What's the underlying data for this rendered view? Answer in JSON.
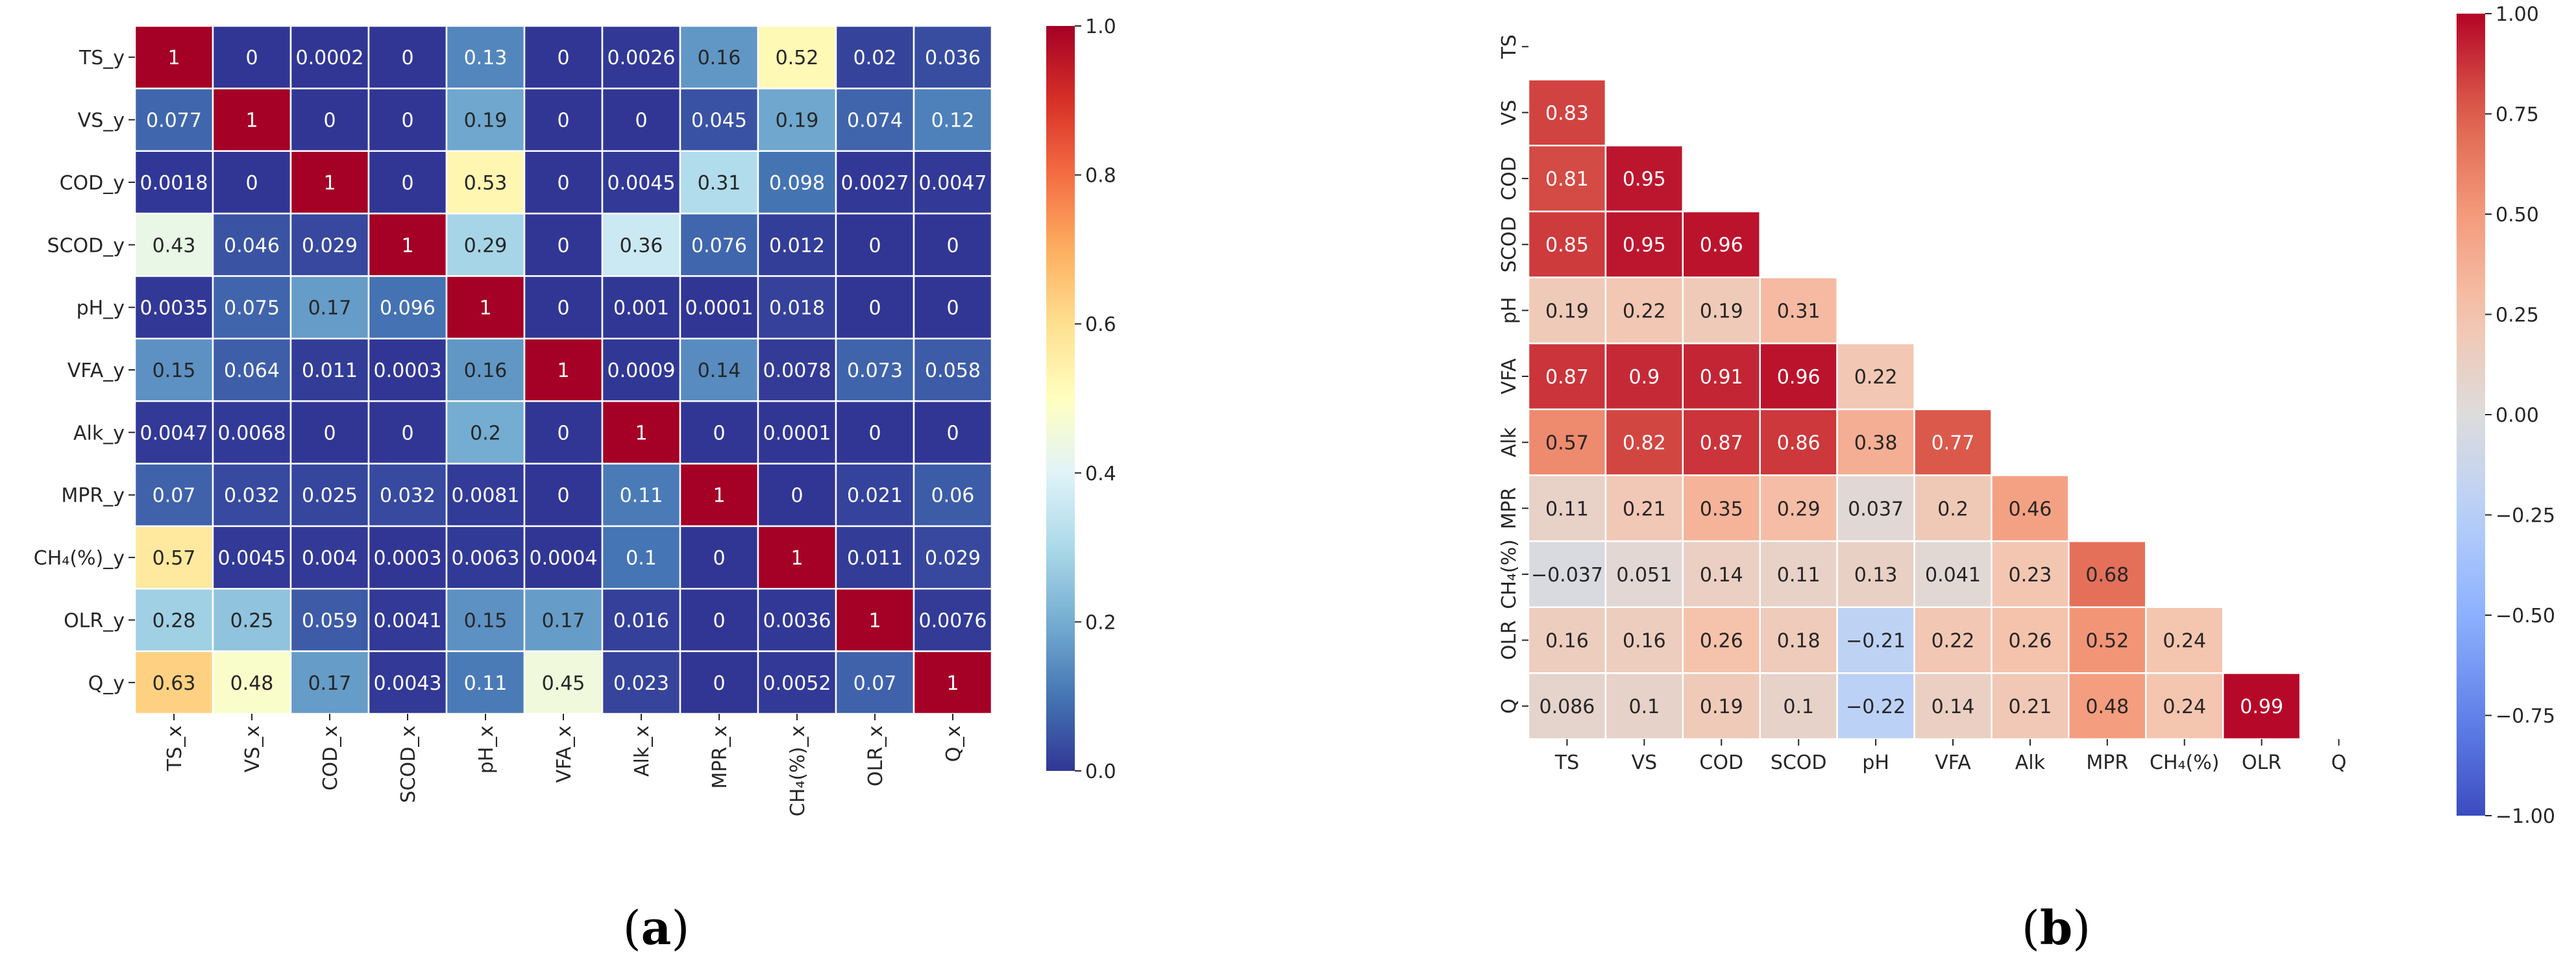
{
  "chart_data": [
    {
      "type": "heatmap",
      "panel_label": "a",
      "colormap": "RdYlBu_r",
      "vmin": 0,
      "vmax": 1,
      "colorbar_ticks": [
        "0.0",
        "0.2",
        "0.4",
        "0.6",
        "0.8",
        "1.0"
      ],
      "colorbar_tick_values": [
        0,
        0.2,
        0.4,
        0.6,
        0.8,
        1.0
      ],
      "row_labels": [
        "TS_y",
        "VS_y",
        "COD_y",
        "SCOD_y",
        "pH_y",
        "VFA_y",
        "Alk_y",
        "MPR_y",
        "CH₄(%)_y",
        "OLR_y",
        "Q_y"
      ],
      "col_labels": [
        "TS_x",
        "VS_x",
        "COD_x",
        "SCOD_x",
        "pH_x",
        "VFA_x",
        "Alk_x",
        "MPR_x",
        "CH₄(%)_x",
        "OLR_x",
        "Q_x"
      ],
      "values": [
        [
          1,
          0,
          0.0002,
          0,
          0.13,
          0,
          0.0026,
          0.16,
          0.52,
          0.02,
          0.036
        ],
        [
          0.077,
          1,
          0,
          0,
          0.19,
          0,
          0,
          0.045,
          0.19,
          0.074,
          0.12
        ],
        [
          0.0018,
          0,
          1,
          0,
          0.53,
          0,
          0.0045,
          0.31,
          0.098,
          0.0027,
          0.0047
        ],
        [
          0.43,
          0.046,
          0.029,
          1,
          0.29,
          0,
          0.36,
          0.076,
          0.012,
          0,
          0
        ],
        [
          0.0035,
          0.075,
          0.17,
          0.096,
          1,
          0,
          0.001,
          0.0001,
          0.018,
          0,
          0
        ],
        [
          0.15,
          0.064,
          0.011,
          0.0003,
          0.16,
          1,
          0.0009,
          0.14,
          0.0078,
          0.073,
          0.058
        ],
        [
          0.0047,
          0.0068,
          0,
          0,
          0.2,
          0,
          1,
          0,
          0.0001,
          0,
          0
        ],
        [
          0.07,
          0.032,
          0.025,
          0.032,
          0.0081,
          0,
          0.11,
          1,
          0,
          0.021,
          0.06
        ],
        [
          0.57,
          0.0045,
          0.004,
          0.0003,
          0.0063,
          0.0004,
          0.1,
          0,
          1,
          0.011,
          0.029
        ],
        [
          0.28,
          0.25,
          0.059,
          0.0041,
          0.15,
          0.17,
          0.016,
          0,
          0.0036,
          1,
          0.0076
        ],
        [
          0.63,
          0.48,
          0.17,
          0.0043,
          0.11,
          0.45,
          0.023,
          0,
          0.0052,
          0.07,
          1
        ]
      ],
      "value_labels": [
        [
          "1",
          "0",
          "0.0002",
          "0",
          "0.13",
          "0",
          "0.0026",
          "0.16",
          "0.52",
          "0.02",
          "0.036"
        ],
        [
          "0.077",
          "1",
          "0",
          "0",
          "0.19",
          "0",
          "0",
          "0.045",
          "0.19",
          "0.074",
          "0.12"
        ],
        [
          "0.0018",
          "0",
          "1",
          "0",
          "0.53",
          "0",
          "0.0045",
          "0.31",
          "0.098",
          "0.0027",
          "0.0047"
        ],
        [
          "0.43",
          "0.046",
          "0.029",
          "1",
          "0.29",
          "0",
          "0.36",
          "0.076",
          "0.012",
          "0",
          "0"
        ],
        [
          "0.0035",
          "0.075",
          "0.17",
          "0.096",
          "1",
          "0",
          "0.001",
          "0.0001",
          "0.018",
          "0",
          "0"
        ],
        [
          "0.15",
          "0.064",
          "0.011",
          "0.0003",
          "0.16",
          "1",
          "0.0009",
          "0.14",
          "0.0078",
          "0.073",
          "0.058"
        ],
        [
          "0.0047",
          "0.0068",
          "0",
          "0",
          "0.2",
          "0",
          "1",
          "0",
          "0.0001",
          "0",
          "0"
        ],
        [
          "0.07",
          "0.032",
          "0.025",
          "0.032",
          "0.0081",
          "0",
          "0.11",
          "1",
          "0",
          "0.021",
          "0.06"
        ],
        [
          "0.57",
          "0.0045",
          "0.004",
          "0.0003",
          "0.0063",
          "0.0004",
          "0.1",
          "0",
          "1",
          "0.011",
          "0.029"
        ],
        [
          "0.28",
          "0.25",
          "0.059",
          "0.0041",
          "0.15",
          "0.17",
          "0.016",
          "0",
          "0.0036",
          "1",
          "0.0076"
        ],
        [
          "0.63",
          "0.48",
          "0.17",
          "0.0043",
          "0.11",
          "0.45",
          "0.023",
          "0",
          "0.0052",
          "0.07",
          "1"
        ]
      ],
      "grid_lines": true
    },
    {
      "type": "heatmap",
      "panel_label": "b",
      "colormap": "coolwarm",
      "mask": "upper-triangle-including-diagonal",
      "vmin": -1,
      "vmax": 1,
      "colorbar_ticks": [
        "−1.00",
        "−0.75",
        "−0.50",
        "−0.25",
        "0.00",
        "0.25",
        "0.50",
        "0.75",
        "1.00"
      ],
      "colorbar_tick_values": [
        -1,
        -0.75,
        -0.5,
        -0.25,
        0,
        0.25,
        0.5,
        0.75,
        1
      ],
      "row_labels": [
        "TS",
        "VS",
        "COD",
        "SCOD",
        "pH",
        "VFA",
        "Alk",
        "MPR",
        "CH₄(%)",
        "OLR",
        "Q"
      ],
      "col_labels": [
        "TS",
        "VS",
        "COD",
        "SCOD",
        "pH",
        "VFA",
        "Alk",
        "MPR",
        "CH₄(%)",
        "OLR",
        "Q"
      ],
      "values": [
        [],
        [
          0.83
        ],
        [
          0.81,
          0.95
        ],
        [
          0.85,
          0.95,
          0.96
        ],
        [
          0.19,
          0.22,
          0.19,
          0.31
        ],
        [
          0.87,
          0.9,
          0.91,
          0.96,
          0.22
        ],
        [
          0.57,
          0.82,
          0.87,
          0.86,
          0.38,
          0.77
        ],
        [
          0.11,
          0.21,
          0.35,
          0.29,
          0.037,
          0.2,
          0.46
        ],
        [
          -0.037,
          0.051,
          0.14,
          0.11,
          0.13,
          0.041,
          0.23,
          0.68
        ],
        [
          0.16,
          0.16,
          0.26,
          0.18,
          -0.21,
          0.22,
          0.26,
          0.52,
          0.24
        ],
        [
          0.086,
          0.1,
          0.19,
          0.1,
          -0.22,
          0.14,
          0.21,
          0.48,
          0.24,
          0.99
        ]
      ],
      "value_labels": [
        [],
        [
          "0.83"
        ],
        [
          "0.81",
          "0.95"
        ],
        [
          "0.85",
          "0.95",
          "0.96"
        ],
        [
          "0.19",
          "0.22",
          "0.19",
          "0.31"
        ],
        [
          "0.87",
          "0.9",
          "0.91",
          "0.96",
          "0.22"
        ],
        [
          "0.57",
          "0.82",
          "0.87",
          "0.86",
          "0.38",
          "0.77"
        ],
        [
          "0.11",
          "0.21",
          "0.35",
          "0.29",
          "0.037",
          "0.2",
          "0.46"
        ],
        [
          "−0.037",
          "0.051",
          "0.14",
          "0.11",
          "0.13",
          "0.041",
          "0.23",
          "0.68"
        ],
        [
          "0.16",
          "0.16",
          "0.26",
          "0.18",
          "−0.21",
          "0.22",
          "0.26",
          "0.52",
          "0.24"
        ],
        [
          "0.086",
          "0.1",
          "0.19",
          "0.1",
          "−0.22",
          "0.14",
          "0.21",
          "0.48",
          "0.24",
          "0.99"
        ]
      ],
      "grid_lines": true
    }
  ]
}
